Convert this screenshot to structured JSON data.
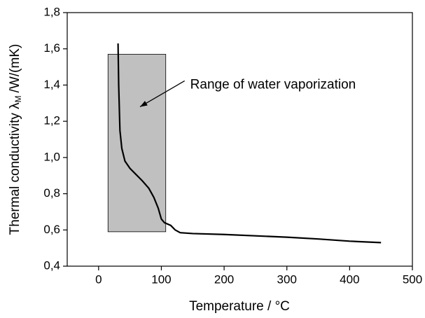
{
  "chart_data": {
    "type": "line",
    "xlabel": "Temperature / °C",
    "ylabel": "Thermal conductivity λ",
    "ylabel_sub": "M",
    "ylabel_unit": "/W/(mK)",
    "xlim": [
      -50,
      500
    ],
    "xticks": [
      0,
      100,
      200,
      300,
      400,
      500
    ],
    "ylim": [
      0.4,
      1.8
    ],
    "yticks": [
      {
        "value": 0.4,
        "label": "0,4"
      },
      {
        "value": 0.6,
        "label": "0,6"
      },
      {
        "value": 0.8,
        "label": "0,8"
      },
      {
        "value": 1.0,
        "label": "1,0"
      },
      {
        "value": 1.2,
        "label": "1,2"
      },
      {
        "value": 1.4,
        "label": "1,4"
      },
      {
        "value": 1.6,
        "label": "1,6"
      },
      {
        "value": 1.8,
        "label": "1,8"
      }
    ],
    "region": {
      "x": [
        15,
        107
      ],
      "y": [
        0.59,
        1.57
      ],
      "color": "#c0c0c0"
    },
    "annotation": {
      "text": "Range of water vaporization",
      "xy": [
        66,
        1.28
      ],
      "xytext": [
        146,
        1.4
      ]
    },
    "series": [
      {
        "color": "#000000",
        "x": [
          31,
          32,
          34,
          37,
          42,
          50,
          60,
          70,
          80,
          88,
          95,
          100,
          105,
          115,
          122,
          130,
          150,
          200,
          300,
          350,
          400,
          450
        ],
        "values": [
          1.63,
          1.4,
          1.15,
          1.05,
          0.98,
          0.94,
          0.905,
          0.87,
          0.83,
          0.78,
          0.72,
          0.66,
          0.64,
          0.625,
          0.6,
          0.585,
          0.58,
          0.575,
          0.56,
          0.55,
          0.538,
          0.53
        ]
      }
    ]
  }
}
